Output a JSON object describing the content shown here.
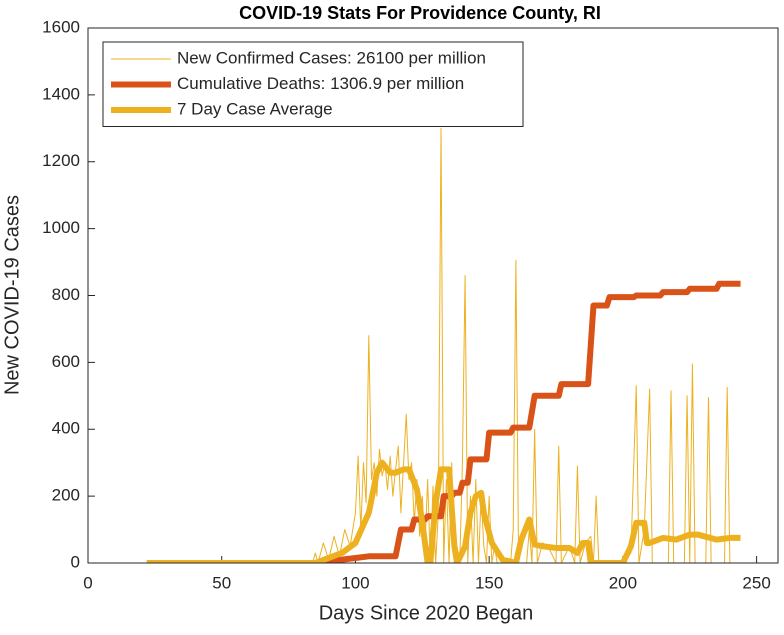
{
  "chart_data": {
    "type": "line",
    "title": "COVID-19 Stats For Providence County, RI",
    "x_label": "Days Since 2020 Began",
    "y_label": "New COVID-19 Cases",
    "xlim": [
      0,
      258
    ],
    "xticks": [
      0,
      50,
      100,
      150,
      200,
      250
    ],
    "ylim": [
      0,
      1600
    ],
    "yticks": [
      0,
      200,
      400,
      600,
      800,
      1000,
      1200,
      1400,
      1600
    ],
    "grid": false,
    "legend": "upper-left",
    "series": [
      {
        "name": "New Confirmed Cases: 26100 per million",
        "color": "#EDB120",
        "width": 1,
        "x": [
          22,
          84,
          85,
          86,
          88,
          90,
          92,
          94,
          96,
          98,
          100,
          101,
          102,
          103,
          104,
          105,
          106,
          107,
          108,
          109,
          110,
          111,
          112,
          113,
          114,
          115,
          116,
          117,
          118,
          119,
          120,
          121,
          122,
          123,
          124,
          125,
          126,
          127,
          128,
          129,
          130,
          131,
          132,
          133,
          134,
          135,
          136,
          137,
          138,
          139,
          140,
          141,
          142,
          143,
          144,
          145,
          146,
          147,
          148,
          149,
          150,
          151,
          152,
          153,
          158,
          159,
          160,
          161,
          164,
          165,
          166,
          167,
          168,
          170,
          172,
          175,
          176,
          177,
          180,
          182,
          183,
          184,
          186,
          188,
          189,
          190,
          191,
          200,
          203,
          205,
          206,
          208,
          210,
          211,
          217,
          218,
          219,
          223,
          224,
          225,
          226,
          227,
          231,
          232,
          233,
          238,
          239,
          240,
          244
        ],
        "values": [
          0,
          0,
          30,
          0,
          60,
          10,
          80,
          20,
          100,
          50,
          150,
          320,
          100,
          300,
          180,
          680,
          250,
          300,
          200,
          340,
          260,
          300,
          220,
          320,
          200,
          280,
          350,
          150,
          300,
          445,
          250,
          300,
          120,
          250,
          80,
          200,
          50,
          250,
          0,
          230,
          0,
          150,
          1300,
          0,
          250,
          0,
          300,
          0,
          50,
          0,
          300,
          860,
          0,
          200,
          0,
          250,
          0,
          200,
          50,
          0,
          200,
          0,
          50,
          0,
          0,
          100,
          905,
          0,
          0,
          100,
          0,
          400,
          0,
          60,
          50,
          0,
          350,
          0,
          50,
          0,
          290,
          0,
          60,
          80,
          0,
          200,
          0,
          0,
          30,
          530,
          0,
          100,
          520,
          0,
          0,
          515,
          0,
          0,
          500,
          0,
          595,
          0,
          0,
          495,
          0,
          0,
          525,
          0,
          0
        ]
      },
      {
        "name": "Cumulative Deaths: 1306.9 per million",
        "color": "#D95319",
        "width": 6,
        "x": [
          22,
          87,
          90,
          95,
          100,
          105,
          115,
          117,
          121,
          122,
          126,
          127,
          132,
          133,
          136,
          137,
          139,
          140,
          142,
          143,
          149,
          150,
          158,
          159,
          165,
          167,
          176,
          177,
          187,
          189,
          194,
          195,
          204,
          205,
          214,
          215,
          224,
          225,
          235,
          236,
          244
        ],
        "values": [
          0,
          0,
          5,
          10,
          15,
          20,
          20,
          100,
          100,
          130,
          130,
          140,
          140,
          200,
          200,
          210,
          210,
          240,
          240,
          310,
          310,
          390,
          390,
          405,
          405,
          500,
          500,
          535,
          535,
          770,
          770,
          795,
          795,
          800,
          800,
          810,
          810,
          820,
          820,
          835,
          835
        ]
      },
      {
        "name": "7 Day Case Average",
        "color": "#EDB120",
        "width": 6,
        "x": [
          22,
          85,
          90,
          95,
          100,
          105,
          108,
          110,
          113,
          115,
          118,
          120,
          123,
          125,
          127,
          128,
          130,
          132,
          135,
          137,
          138,
          141,
          143,
          145,
          147,
          148,
          151,
          155,
          160,
          162,
          165,
          167,
          170,
          175,
          180,
          183,
          185,
          187,
          188,
          190,
          200,
          203,
          205,
          208,
          209,
          210,
          215,
          220,
          225,
          228,
          235,
          240,
          244
        ],
        "values": [
          0,
          0,
          15,
          30,
          60,
          150,
          270,
          300,
          270,
          270,
          280,
          280,
          220,
          120,
          0,
          0,
          180,
          280,
          280,
          50,
          0,
          50,
          150,
          200,
          210,
          150,
          60,
          10,
          0,
          70,
          130,
          55,
          50,
          45,
          45,
          30,
          60,
          60,
          0,
          0,
          0,
          50,
          120,
          120,
          60,
          60,
          75,
          70,
          85,
          85,
          70,
          75,
          75
        ]
      }
    ]
  }
}
